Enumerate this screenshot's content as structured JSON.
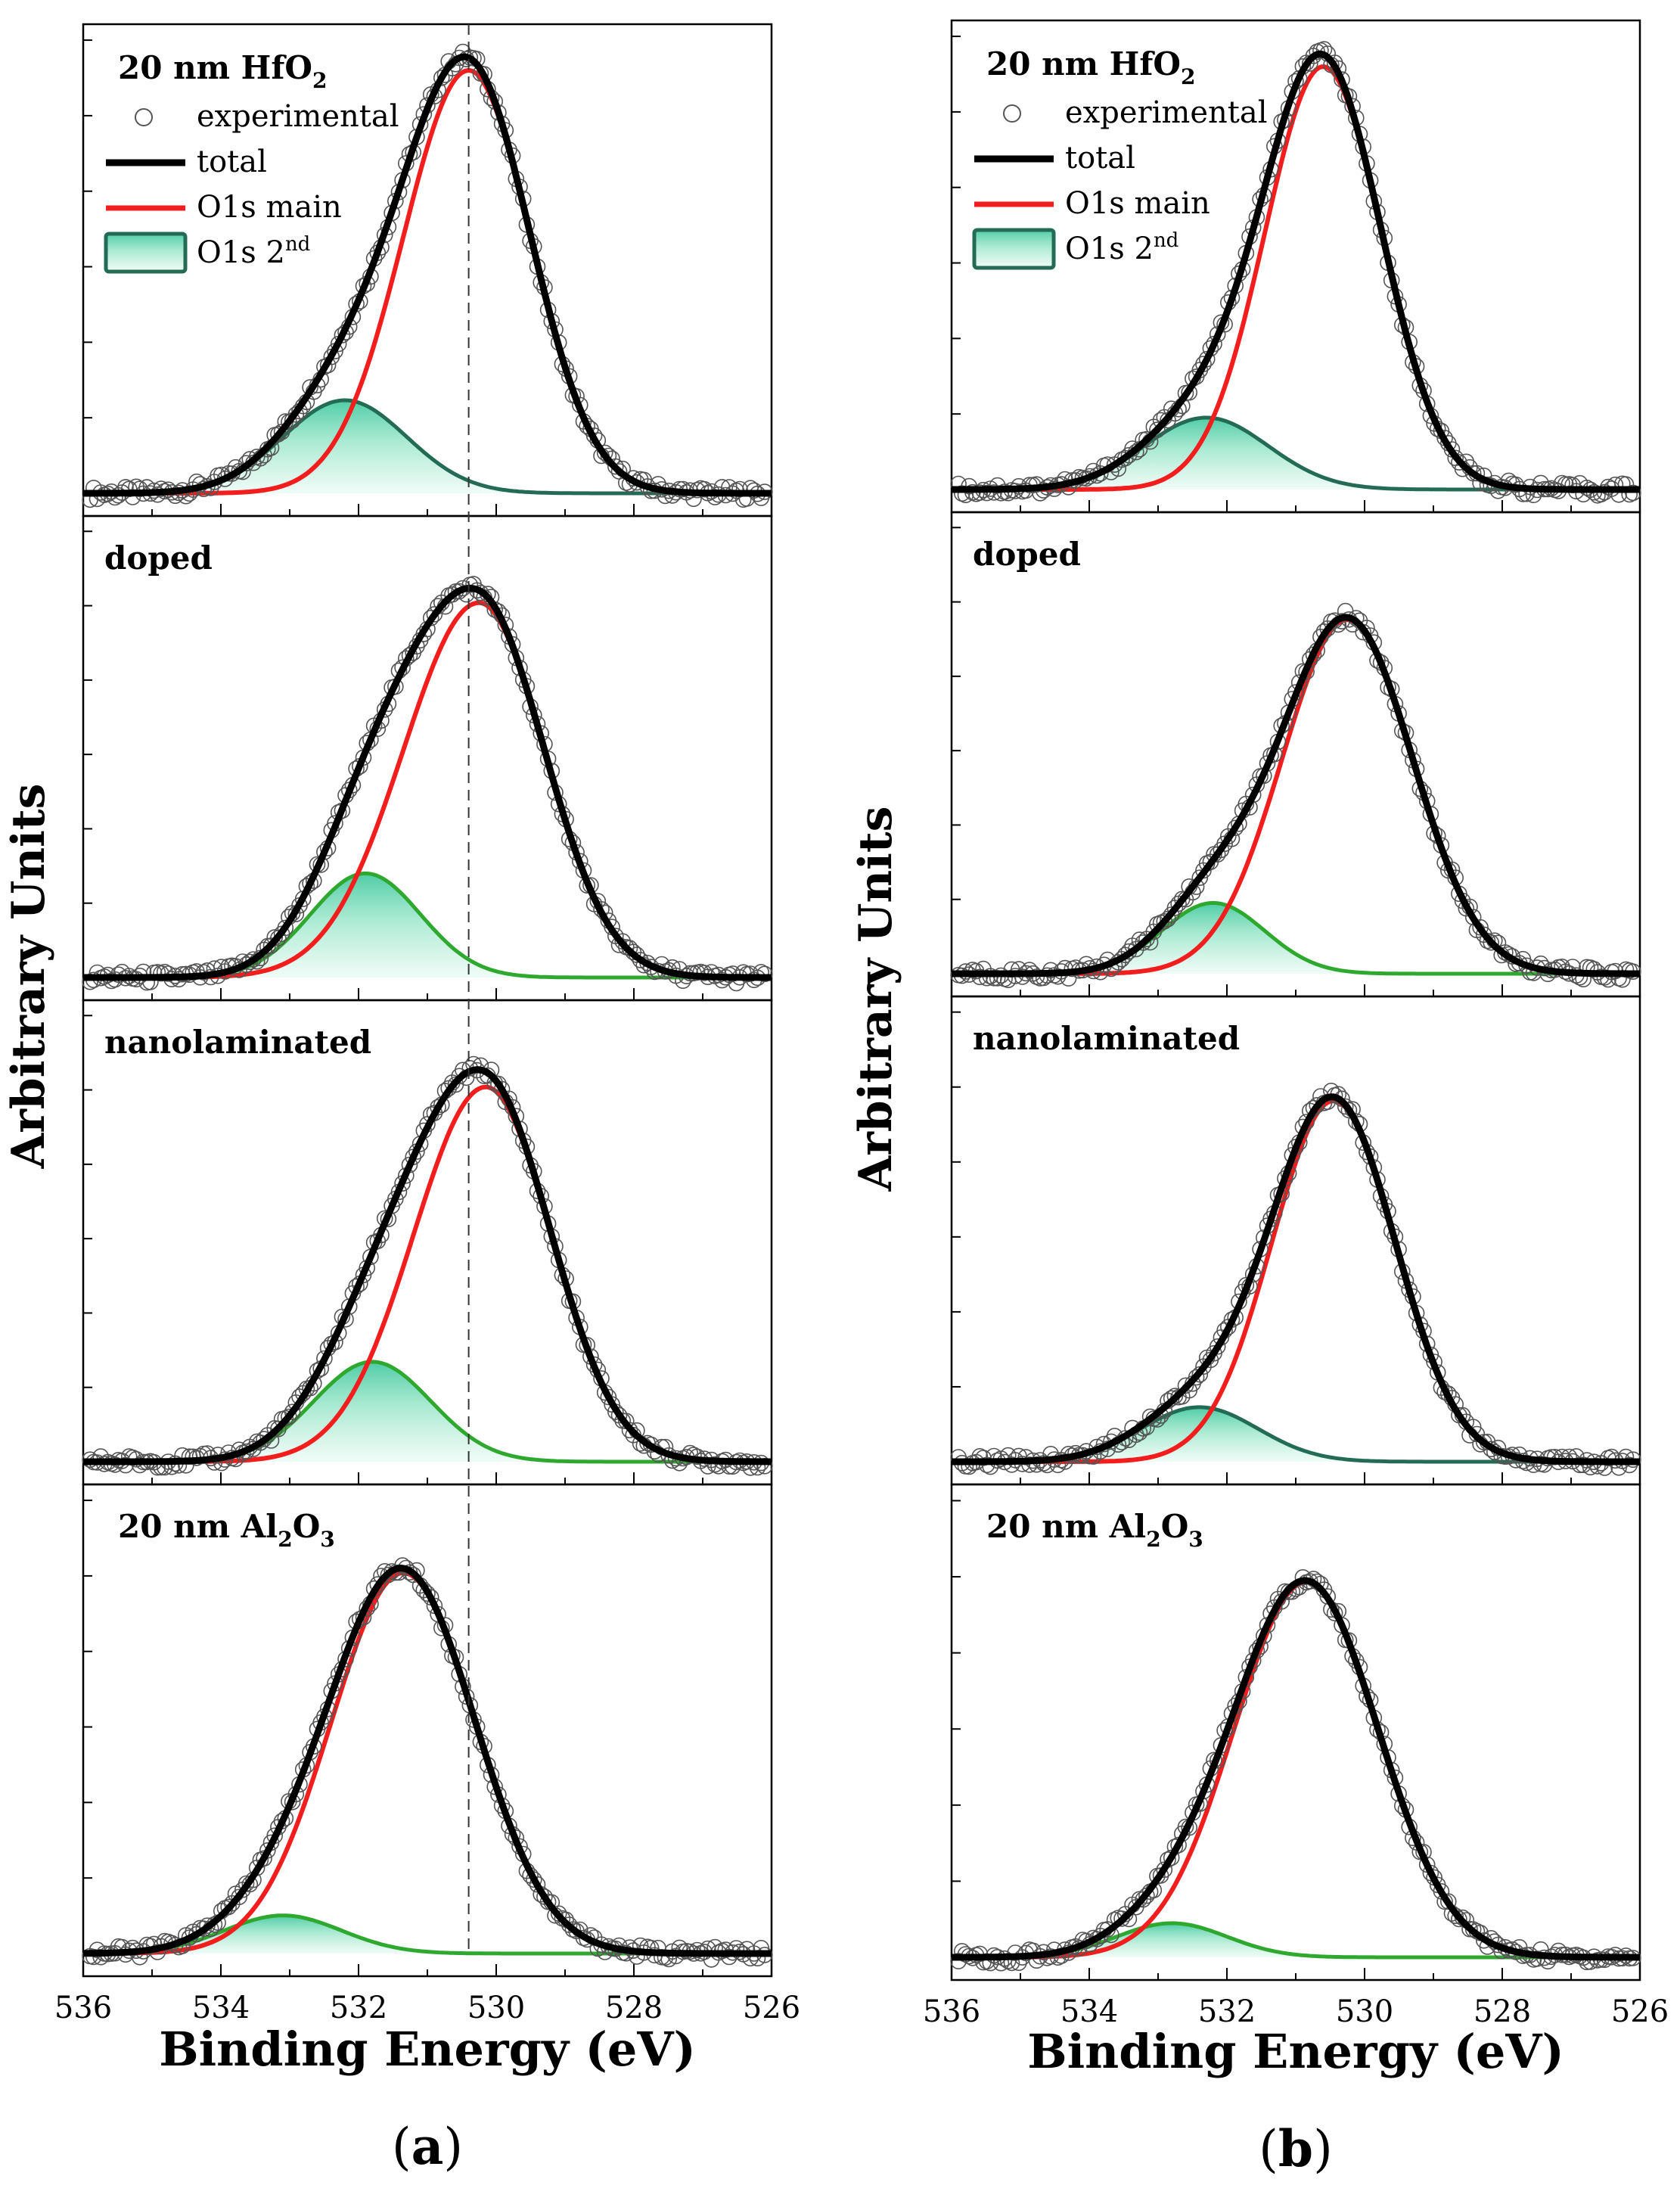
{
  "chart_data": [
    {
      "type": "line",
      "figure_label": "(a)",
      "xlabel": "Binding Energy (eV)",
      "ylabel": "Arbitrary Units",
      "xlim": [
        536,
        526
      ],
      "x_reversed": true,
      "x_ticks": [
        "536",
        "534",
        "532",
        "530",
        "528",
        "526"
      ],
      "reference_line_x": 530.4,
      "legend": {
        "placement": "top-left",
        "entries": [
          {
            "name": "experimental",
            "style": "open-circle"
          },
          {
            "name": "total",
            "style": "black-line"
          },
          {
            "name": "O1s main",
            "style": "red-line"
          },
          {
            "name": "O1s 2nd",
            "style": "filled-area"
          }
        ]
      },
      "panels": [
        {
          "label": "20 nm HfO2",
          "second_color": "#236b55",
          "main": {
            "center": 530.4,
            "height": 1.0,
            "width_left": 0.95,
            "width_right": 0.9
          },
          "second": {
            "center": 532.2,
            "height": 0.22,
            "width": 0.9
          }
        },
        {
          "label": "doped",
          "second_color": "#2ea82e",
          "main": {
            "center": 530.25,
            "height": 0.9,
            "width_left": 1.1,
            "width_right": 0.95
          },
          "second": {
            "center": 531.9,
            "height": 0.25,
            "width": 0.8
          }
        },
        {
          "label": "nanolaminated",
          "second_color": "#2ea82e",
          "main": {
            "center": 530.15,
            "height": 0.9,
            "width_left": 1.05,
            "width_right": 0.95
          },
          "second": {
            "center": 531.8,
            "height": 0.24,
            "width": 0.85
          }
        },
        {
          "label": "20 nm Al2O3",
          "second_color": "#2ea82e",
          "main": {
            "center": 531.35,
            "height": 0.9,
            "width_left": 1.05,
            "width_right": 1.05
          },
          "second": {
            "center": 533.1,
            "height": 0.09,
            "width": 0.85
          }
        }
      ]
    },
    {
      "type": "line",
      "figure_label": "(b)",
      "xlabel": "Binding Energy (eV)",
      "ylabel": "Arbitrary Units",
      "xlim": [
        536,
        526
      ],
      "x_reversed": true,
      "x_ticks": [
        "536",
        "534",
        "532",
        "530",
        "528",
        "526"
      ],
      "legend": {
        "placement": "top-left",
        "entries": [
          {
            "name": "experimental",
            "style": "open-circle"
          },
          {
            "name": "total",
            "style": "black-line"
          },
          {
            "name": "O1s main",
            "style": "red-line"
          },
          {
            "name": "O1s 2nd",
            "style": "filled-area"
          }
        ]
      },
      "panels": [
        {
          "label": "20 nm HfO2",
          "second_color": "#236b55",
          "main": {
            "center": 530.6,
            "height": 1.0,
            "width_left": 0.85,
            "width_right": 0.85
          },
          "second": {
            "center": 532.3,
            "height": 0.17,
            "width": 0.9
          }
        },
        {
          "label": "doped",
          "second_color": "#2ea82e",
          "main": {
            "center": 530.25,
            "height": 0.85,
            "width_left": 0.95,
            "width_right": 0.95
          },
          "second": {
            "center": 532.2,
            "height": 0.17,
            "width": 0.75
          }
        },
        {
          "label": "nanolaminated",
          "second_color": "#236b55",
          "main": {
            "center": 530.45,
            "height": 0.86,
            "width_left": 0.9,
            "width_right": 0.9
          },
          "second": {
            "center": 532.4,
            "height": 0.13,
            "width": 0.85
          }
        },
        {
          "label": "20 nm Al2O3",
          "second_color": "#2ea82e",
          "main": {
            "center": 530.85,
            "height": 0.88,
            "width_left": 1.05,
            "width_right": 1.05
          },
          "second": {
            "center": 532.8,
            "height": 0.08,
            "width": 0.8
          }
        }
      ]
    }
  ]
}
